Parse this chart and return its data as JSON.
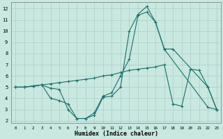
{
  "xlabel": "Humidex (Indice chaleur)",
  "bg_color": "#c8e8e0",
  "grid_color": "#aacfc8",
  "line_color": "#1a706a",
  "xlim": [
    -0.5,
    23.5
  ],
  "ylim": [
    1.8,
    12.6
  ],
  "xticks": [
    0,
    1,
    2,
    3,
    4,
    5,
    6,
    7,
    8,
    9,
    10,
    11,
    12,
    13,
    14,
    15,
    16,
    17,
    18,
    19,
    20,
    21,
    22,
    23
  ],
  "yticks": [
    2,
    3,
    4,
    5,
    6,
    7,
    8,
    9,
    10,
    11,
    12
  ],
  "line1_x": [
    0,
    1,
    2,
    3,
    4,
    5,
    6,
    7,
    8,
    9,
    10,
    11,
    12,
    13,
    14,
    15,
    16,
    17,
    18,
    22,
    23
  ],
  "line1_y": [
    5.0,
    5.0,
    5.1,
    5.2,
    4.9,
    4.8,
    3.0,
    2.2,
    2.2,
    2.5,
    4.1,
    4.2,
    5.0,
    10.0,
    11.5,
    12.2,
    10.8,
    8.4,
    8.4,
    5.0,
    3.0
  ],
  "line2_x": [
    0,
    1,
    2,
    3,
    4,
    5,
    6,
    7,
    8,
    9,
    10,
    11,
    12,
    13,
    14,
    15,
    16,
    17,
    22,
    23
  ],
  "line2_y": [
    5.0,
    5.0,
    5.1,
    5.2,
    4.0,
    3.8,
    3.5,
    2.2,
    2.2,
    2.7,
    4.2,
    4.5,
    6.0,
    7.5,
    11.4,
    11.7,
    10.8,
    8.4,
    3.2,
    3.0
  ],
  "line3_x": [
    0,
    1,
    2,
    3,
    4,
    5,
    6,
    7,
    8,
    9,
    10,
    11,
    12,
    13,
    14,
    15,
    16,
    17,
    18,
    19,
    20,
    21,
    22,
    23
  ],
  "line3_y": [
    5.0,
    5.0,
    5.1,
    5.2,
    5.3,
    5.4,
    5.5,
    5.6,
    5.7,
    5.8,
    6.0,
    6.1,
    6.3,
    6.5,
    6.6,
    6.7,
    6.8,
    7.0,
    3.5,
    3.3,
    6.6,
    6.5,
    5.0,
    3.0
  ]
}
